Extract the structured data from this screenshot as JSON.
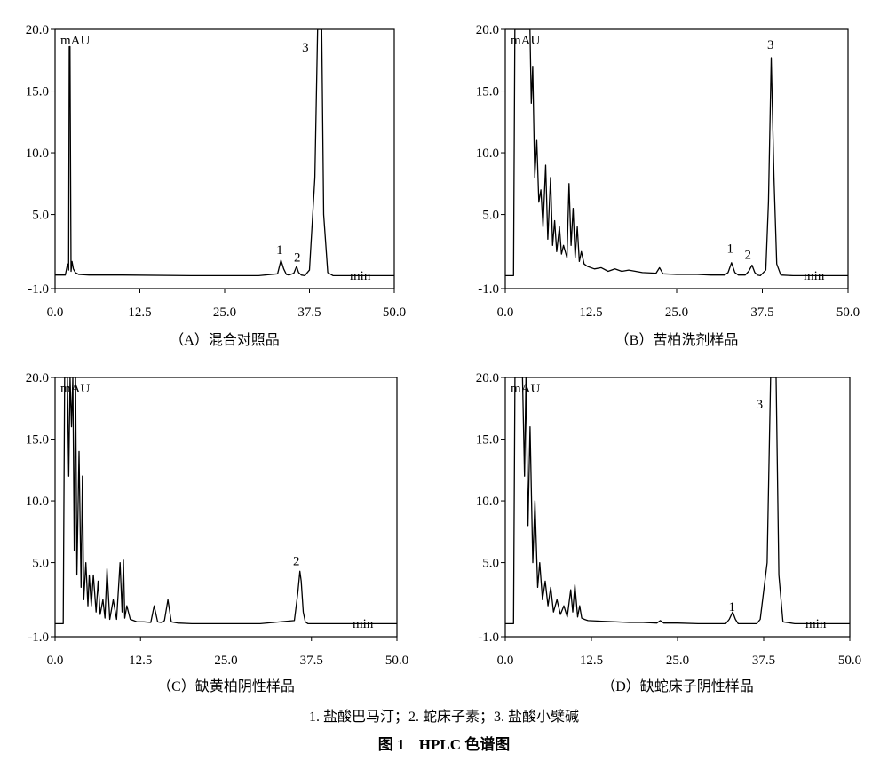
{
  "figure": {
    "legend_note": "1. 盐酸巴马汀；2. 蛇床子素；3. 盐酸小檗碱",
    "title_number": "图 1",
    "title_text": "HPLC 色谱图"
  },
  "colors": {
    "line": "#000000",
    "background": "#ffffff"
  },
  "chart_data": [
    {
      "type": "line",
      "panel": "A",
      "caption": "（A）混合对照品",
      "ylabel": "mAU",
      "xlabel": "min",
      "xlim": [
        0,
        50
      ],
      "ylim": [
        -1,
        20
      ],
      "x_ticks": [
        "0.0",
        "12.5",
        "25.0",
        "37.5",
        "50.0"
      ],
      "y_ticks": [
        "-1.0",
        "5.0",
        "10.0",
        "15.0",
        "20.0"
      ],
      "peak_labels": [
        {
          "label": "1",
          "x": 33.1,
          "y": 1.8
        },
        {
          "label": "2",
          "x": 35.7,
          "y": 1.2
        },
        {
          "label": "3",
          "x": 36.9,
          "y": 18.2
        }
      ],
      "series": [
        {
          "x": [
            0,
            1.5,
            1.85,
            2.0,
            2.1,
            2.2,
            2.35,
            2.5,
            2.7,
            3.0,
            3.5,
            5,
            10,
            20,
            30,
            32.8,
            33.3,
            33.7,
            34.1,
            34.5,
            35.2,
            35.6,
            35.9,
            36.3,
            36.8,
            37.5,
            38.3,
            38.7,
            39.0,
            39.3,
            39.6,
            40.2,
            41,
            45,
            50
          ],
          "y": [
            0.1,
            0.1,
            1.0,
            0.5,
            18.6,
            18.6,
            0.4,
            1.2,
            0.6,
            0.3,
            0.15,
            0.1,
            0.1,
            0.05,
            0.05,
            0.2,
            1.3,
            0.6,
            0.15,
            0.1,
            0.25,
            0.8,
            0.3,
            0.1,
            0.05,
            0.5,
            8,
            20,
            20,
            20,
            5,
            0.3,
            0.05,
            0.05,
            0.05
          ]
        }
      ]
    },
    {
      "type": "line",
      "panel": "B",
      "caption": "（B）苦柏洗剂样品",
      "ylabel": "mAU",
      "xlabel": "min",
      "xlim": [
        0,
        50
      ],
      "ylim": [
        -1,
        20
      ],
      "x_ticks": [
        "0.0",
        "12.5",
        "25.0",
        "37.5",
        "50.0"
      ],
      "y_ticks": [
        "-1.0",
        "5.0",
        "10.0",
        "15.0",
        "20.0"
      ],
      "peak_labels": [
        {
          "label": "1",
          "x": 32.8,
          "y": 1.9
        },
        {
          "label": "2",
          "x": 35.4,
          "y": 1.4
        },
        {
          "label": "3",
          "x": 38.7,
          "y": 18.4
        }
      ],
      "series": [
        {
          "x": [
            0,
            1.2,
            1.4,
            1.6,
            3.0,
            3.2,
            3.4,
            3.6,
            3.8,
            4.0,
            4.3,
            4.6,
            4.9,
            5.2,
            5.5,
            5.9,
            6.2,
            6.6,
            6.9,
            7.2,
            7.5,
            7.9,
            8.2,
            8.5,
            9.0,
            9.3,
            9.6,
            9.9,
            10.2,
            10.5,
            10.8,
            11.1,
            11.5,
            12.0,
            13.0,
            14,
            15,
            16,
            17,
            18,
            20,
            22,
            22.5,
            23,
            25,
            28,
            30,
            32,
            32.5,
            33.0,
            33.5,
            34.0,
            35.0,
            35.5,
            36.0,
            36.4,
            36.8,
            37.2,
            38.0,
            38.4,
            38.8,
            39.2,
            39.6,
            40.2,
            42,
            45,
            50
          ],
          "y": [
            0.05,
            0.05,
            20,
            20,
            20,
            20,
            20,
            20,
            14,
            17,
            8,
            11,
            6,
            7,
            4,
            9,
            3,
            8,
            2.5,
            4.5,
            2,
            4,
            1.8,
            2.5,
            1.5,
            7.5,
            2.5,
            5.5,
            1.5,
            4,
            1.2,
            2,
            1,
            0.8,
            0.6,
            0.7,
            0.4,
            0.6,
            0.4,
            0.5,
            0.3,
            0.25,
            0.7,
            0.2,
            0.15,
            0.15,
            0.1,
            0.1,
            0.3,
            1.1,
            0.3,
            0.1,
            0.1,
            0.4,
            0.9,
            0.3,
            0.1,
            0.05,
            0.5,
            6,
            17.7,
            8,
            1,
            0.1,
            0.05,
            0.05,
            0.05
          ]
        }
      ]
    },
    {
      "type": "line",
      "panel": "C",
      "caption": "（C）缺黄柏阴性样品",
      "ylabel": "mAU",
      "xlabel": "min",
      "xlim": [
        0,
        50
      ],
      "ylim": [
        -1,
        20
      ],
      "x_ticks": [
        "0.0",
        "12.5",
        "25.0",
        "37.5",
        "50.0"
      ],
      "y_ticks": [
        "-1.0",
        "5.0",
        "10.0",
        "15.0",
        "20.0"
      ],
      "peak_labels": [
        {
          "label": "2",
          "x": 35.3,
          "y": 4.8
        }
      ],
      "series": [
        {
          "x": [
            0,
            1.2,
            1.4,
            1.6,
            1.8,
            2.0,
            2.2,
            2.4,
            2.6,
            2.8,
            3.0,
            3.2,
            3.5,
            3.8,
            4.0,
            4.2,
            4.5,
            4.8,
            5.0,
            5.3,
            5.6,
            6.0,
            6.3,
            6.6,
            7.0,
            7.3,
            7.6,
            8.0,
            8.5,
            9.0,
            9.5,
            9.8,
            10.0,
            10.2,
            10.5,
            11,
            11.5,
            12,
            13,
            14,
            14.5,
            15,
            15.5,
            16,
            16.5,
            17,
            18,
            20,
            25,
            30,
            35,
            35.5,
            35.8,
            36.0,
            36.3,
            36.6,
            37.0,
            38,
            40,
            45,
            50
          ],
          "y": [
            0.05,
            0.05,
            20,
            20,
            20,
            12,
            20,
            16,
            20,
            6,
            20,
            4,
            14,
            3,
            12,
            2,
            5,
            1.5,
            4,
            1.5,
            4,
            1,
            3.5,
            0.8,
            2,
            0.5,
            4.5,
            0.4,
            2,
            0.4,
            5,
            1,
            5.2,
            0.5,
            1.5,
            0.4,
            0.3,
            0.2,
            0.2,
            0.15,
            1.5,
            0.2,
            0.15,
            0.3,
            2,
            0.2,
            0.1,
            0.05,
            0.05,
            0.05,
            0.3,
            2.5,
            4.3,
            3.5,
            1,
            0.2,
            0.05,
            0.05,
            0.05,
            0.05,
            0.05
          ]
        }
      ]
    },
    {
      "type": "line",
      "panel": "D",
      "caption": "（D）缺蛇床子阴性样品",
      "ylabel": "mAU",
      "xlabel": "min",
      "xlim": [
        0,
        50
      ],
      "ylim": [
        -1,
        20
      ],
      "x_ticks": [
        "0.0",
        "12.5",
        "25.0",
        "37.5",
        "50.0"
      ],
      "y_ticks": [
        "-1.0",
        "5.0",
        "10.0",
        "15.0",
        "20.0"
      ],
      "peak_labels": [
        {
          "label": "1",
          "x": 32.9,
          "y": 1.1
        },
        {
          "label": "3",
          "x": 36.9,
          "y": 17.5
        }
      ],
      "series": [
        {
          "x": [
            0,
            1.2,
            1.4,
            1.6,
            2.0,
            2.5,
            2.8,
            3.0,
            3.3,
            3.6,
            4.0,
            4.3,
            4.7,
            5.0,
            5.4,
            5.8,
            6.2,
            6.6,
            7.0,
            7.5,
            8.0,
            8.5,
            9.0,
            9.5,
            9.8,
            10.1,
            10.5,
            10.8,
            11.1,
            11.5,
            12,
            14,
            16,
            18,
            20,
            22,
            22.5,
            23,
            25,
            28,
            30,
            32.0,
            32.5,
            33.0,
            33.4,
            33.8,
            34.5,
            35.5,
            36.5,
            37.0,
            38.0,
            38.5,
            38.9,
            39.3,
            39.7,
            40.3,
            42,
            45,
            50
          ],
          "y": [
            0.05,
            0.05,
            20,
            20,
            20,
            20,
            12,
            20,
            8,
            16,
            5,
            10,
            3,
            5,
            2,
            3.5,
            1.5,
            3,
            1,
            2,
            0.8,
            1.5,
            0.6,
            2.8,
            1,
            3.2,
            0.6,
            1.5,
            0.5,
            0.4,
            0.3,
            0.25,
            0.2,
            0.15,
            0.15,
            0.1,
            0.3,
            0.1,
            0.1,
            0.05,
            0.05,
            0.05,
            0.4,
            1.0,
            0.4,
            0.05,
            0.05,
            0.05,
            0.05,
            0.4,
            5,
            20,
            20,
            20,
            4,
            0.2,
            0.05,
            0.05,
            0.05
          ]
        }
      ]
    }
  ]
}
